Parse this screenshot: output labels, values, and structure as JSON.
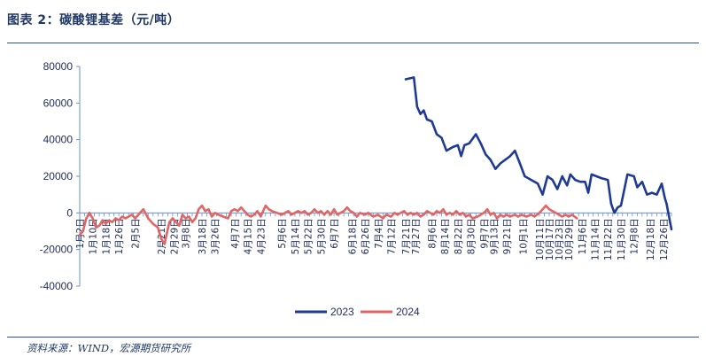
{
  "figure": {
    "title": "图表 2：碳酸锂基差（元/吨）",
    "source": "资料来源：WIND，宏源期货研究所"
  },
  "colors": {
    "series_2023": "#1f3a93",
    "series_2024": "#e06666",
    "axis": "#6a8fc7",
    "text": "#1f3864"
  },
  "chart_data": {
    "type": "line",
    "title": "",
    "xlabel": "",
    "ylabel": "",
    "ylim": [
      -40000,
      80000
    ],
    "yticks": [
      -40000,
      -20000,
      0,
      20000,
      40000,
      60000,
      80000
    ],
    "ytick_labels": [
      "-40000",
      "-20000",
      "0",
      "20000",
      "40000",
      "60000",
      "80000"
    ],
    "x_domain": [
      "1月2日",
      "12月31日"
    ],
    "x_tick_labels": [
      "1月2日",
      "1月10日",
      "1月18日",
      "1月26日",
      "2月5日",
      "2月21日",
      "2月29日",
      "3月8日",
      "3月18日",
      "3月26日",
      "4月7日",
      "4月15日",
      "4月23日",
      "5月6日",
      "5月14日",
      "5月22日",
      "5月30日",
      "6月7日",
      "6月18日",
      "6月26日",
      "7月4日",
      "7月12日",
      "7月21日",
      "7月27日",
      "8月6日",
      "8月14日",
      "8月22日",
      "8月30日",
      "9月7日",
      "9月13日",
      "9月21日",
      "10月1日",
      "10月11日",
      "10月17日",
      "10月23日",
      "10月29日",
      "11月6日",
      "11月14日",
      "11月22日",
      "11月30日",
      "12月8日",
      "12月18日",
      "12月26日"
    ],
    "grid": false,
    "legend": {
      "position": "bottom",
      "entries": [
        "2023",
        "2024"
      ]
    },
    "series": [
      {
        "name": "2023",
        "points": [
          [
            "7月21日",
            73000
          ],
          [
            "7月26日",
            74000
          ],
          [
            "7月28日",
            58000
          ],
          [
            "7月30日",
            54000
          ],
          [
            "8月1日",
            56000
          ],
          [
            "8月3日",
            51000
          ],
          [
            "8月6日",
            50000
          ],
          [
            "8月9日",
            43000
          ],
          [
            "8月12日",
            41000
          ],
          [
            "8月15日",
            34000
          ],
          [
            "8月19日",
            36000
          ],
          [
            "8月22日",
            37000
          ],
          [
            "8月24日",
            31000
          ],
          [
            "8月26日",
            37000
          ],
          [
            "8月29日",
            38000
          ],
          [
            "9月2日",
            43000
          ],
          [
            "9月5日",
            38000
          ],
          [
            "9月8日",
            32000
          ],
          [
            "9月11日",
            29000
          ],
          [
            "9月14日",
            24000
          ],
          [
            "9月17日",
            27000
          ],
          [
            "9月20日",
            29000
          ],
          [
            "9月23日",
            31000
          ],
          [
            "9月26日",
            34000
          ],
          [
            "9月29日",
            27000
          ],
          [
            "10月2日",
            20000
          ],
          [
            "10月6日",
            18000
          ],
          [
            "10月10日",
            16000
          ],
          [
            "10月13日",
            10000
          ],
          [
            "10月16日",
            20000
          ],
          [
            "10月19日",
            18000
          ],
          [
            "10月22日",
            13000
          ],
          [
            "10月25日",
            20000
          ],
          [
            "10月28日",
            15000
          ],
          [
            "10月30日",
            21000
          ],
          [
            "11月2日",
            18000
          ],
          [
            "11月5日",
            17000
          ],
          [
            "11月8日",
            17000
          ],
          [
            "11月10日",
            11000
          ],
          [
            "11月12日",
            21000
          ],
          [
            "11月15日",
            20000
          ],
          [
            "11月18日",
            19000
          ],
          [
            "11月22日",
            18000
          ],
          [
            "11月24日",
            5000
          ],
          [
            "11月26日",
            0
          ],
          [
            "11月28日",
            3000
          ],
          [
            "11月30日",
            4000
          ],
          [
            "12月4日",
            21000
          ],
          [
            "12月8日",
            20000
          ],
          [
            "12月10日",
            14000
          ],
          [
            "12月13日",
            17000
          ],
          [
            "12月16日",
            10000
          ],
          [
            "12月19日",
            11000
          ],
          [
            "12月22日",
            10000
          ],
          [
            "12月25日",
            16000
          ],
          [
            "12月27日",
            8000
          ],
          [
            "12月28日",
            5000
          ],
          [
            "12月31日",
            -9000
          ]
        ]
      },
      {
        "name": "2024",
        "points": [
          [
            "1月2日",
            -12000
          ],
          [
            "1月4日",
            -10000
          ],
          [
            "1月6日",
            -3000
          ],
          [
            "1月8日",
            0
          ],
          [
            "1月10日",
            -3000
          ],
          [
            "1月12日",
            -8000
          ],
          [
            "1月14日",
            -7000
          ],
          [
            "1月16日",
            -4000
          ],
          [
            "1月18日",
            -6000
          ],
          [
            "1月20日",
            -4000
          ],
          [
            "1月22日",
            -5000
          ],
          [
            "1月24日",
            -3000
          ],
          [
            "1月26日",
            -4000
          ],
          [
            "1月28日",
            -2000
          ],
          [
            "1月30日",
            -3000
          ],
          [
            "2月1日",
            -2000
          ],
          [
            "2月3日",
            -1000
          ],
          [
            "2月5日",
            -3000
          ],
          [
            "2月7日",
            -1000
          ],
          [
            "2月10日",
            2000
          ],
          [
            "2月13日",
            -3000
          ],
          [
            "2月16日",
            -6000
          ],
          [
            "2月19日",
            -8000
          ],
          [
            "2月21日",
            -14000
          ],
          [
            "2月23日",
            -17000
          ],
          [
            "2月26日",
            -5000
          ],
          [
            "2月28日",
            -3000
          ],
          [
            "3月1日",
            -4000
          ],
          [
            "3月4日",
            -7000
          ],
          [
            "3月6日",
            -1000
          ],
          [
            "3月8日",
            -3000
          ],
          [
            "3月10日",
            -2000
          ],
          [
            "3月12日",
            -5000
          ],
          [
            "3月14日",
            -3000
          ],
          [
            "3月16日",
            2000
          ],
          [
            "3月18日",
            4000
          ],
          [
            "3月20日",
            1000
          ],
          [
            "3月22日",
            2000
          ],
          [
            "3月24日",
            -2000
          ],
          [
            "3月26日",
            0
          ],
          [
            "3月28日",
            -1000
          ],
          [
            "3月31日",
            -2000
          ],
          [
            "4月3日",
            -3000
          ],
          [
            "4月5日",
            1000
          ],
          [
            "4月7日",
            2000
          ],
          [
            "4月9日",
            1000
          ],
          [
            "4月11日",
            3000
          ],
          [
            "4月13日",
            1000
          ],
          [
            "4月15日",
            -1000
          ],
          [
            "4月17日",
            -2000
          ],
          [
            "4月19日",
            -1000
          ],
          [
            "4月21日",
            1000
          ],
          [
            "4月23日",
            -2000
          ],
          [
            "4月26日",
            4000
          ],
          [
            "4月28日",
            2000
          ],
          [
            "4月30日",
            1000
          ],
          [
            "5月3日",
            0
          ],
          [
            "5月6日",
            -1000
          ],
          [
            "5月8日",
            0
          ],
          [
            "5月10日",
            1000
          ],
          [
            "5月12日",
            -1000
          ],
          [
            "5月14日",
            0
          ],
          [
            "5月16日",
            1000
          ],
          [
            "5月18日",
            0
          ],
          [
            "5月20日",
            1000
          ],
          [
            "5月22日",
            -1000
          ],
          [
            "5月24日",
            0
          ],
          [
            "5月26日",
            2000
          ],
          [
            "5月28日",
            0
          ],
          [
            "5月30日",
            1000
          ],
          [
            "6月1日",
            -1000
          ],
          [
            "6月3日",
            1000
          ],
          [
            "6月5日",
            -1000
          ],
          [
            "6月7日",
            2000
          ],
          [
            "6月9日",
            -1000
          ],
          [
            "6月11日",
            0
          ],
          [
            "6月13日",
            1000
          ],
          [
            "6月15日",
            3000
          ],
          [
            "6月17日",
            1000
          ],
          [
            "6月19日",
            0
          ],
          [
            "6月21日",
            -2000
          ],
          [
            "6月23日",
            0
          ],
          [
            "6月26日",
            -1000
          ],
          [
            "6月28日",
            0
          ],
          [
            "7月1日",
            -2000
          ],
          [
            "7月4日",
            -1000
          ],
          [
            "7月7日",
            -3000
          ],
          [
            "7月9日",
            -1000
          ],
          [
            "7月12日",
            -2000
          ],
          [
            "7月14日",
            0
          ],
          [
            "7月16日",
            -1000
          ],
          [
            "7月18日",
            0
          ],
          [
            "7月20日",
            1000
          ],
          [
            "7月22日",
            -1000
          ],
          [
            "7月24日",
            0
          ],
          [
            "7月26日",
            -1000
          ],
          [
            "7月28日",
            0
          ],
          [
            "7月30日",
            -2000
          ],
          [
            "8月1日",
            -1000
          ],
          [
            "8月3日",
            1000
          ],
          [
            "8月5日",
            0
          ],
          [
            "8月7日",
            -1000
          ],
          [
            "8月9日",
            1000
          ],
          [
            "8月11日",
            0
          ],
          [
            "8月13日",
            2000
          ],
          [
            "8月15日",
            -1000
          ],
          [
            "8月17日",
            0
          ],
          [
            "8月19日",
            -1000
          ],
          [
            "8月21日",
            1000
          ],
          [
            "8月23日",
            -1000
          ],
          [
            "8月25日",
            0
          ],
          [
            "8月27日",
            -2000
          ],
          [
            "8月29日",
            -1000
          ],
          [
            "8月31日",
            -3000
          ],
          [
            "9月3日",
            -2000
          ],
          [
            "9月5日",
            -1000
          ],
          [
            "9月7日",
            0
          ],
          [
            "9月9日",
            2000
          ],
          [
            "9月11日",
            -1000
          ],
          [
            "9月13日",
            0
          ],
          [
            "9月15日",
            -3000
          ],
          [
            "9月17日",
            -1000
          ],
          [
            "9月19日",
            -2000
          ],
          [
            "9月21日",
            -1000
          ],
          [
            "9月23日",
            -2000
          ],
          [
            "9月26日",
            -1000
          ],
          [
            "9月28日",
            -2000
          ],
          [
            "9月30日",
            -1000
          ],
          [
            "10月3日",
            -2000
          ],
          [
            "10月6日",
            -1000
          ],
          [
            "10月8日",
            -2000
          ],
          [
            "10月11日",
            0
          ],
          [
            "10月13日",
            2000
          ],
          [
            "10月15日",
            4000
          ],
          [
            "10月17日",
            2000
          ],
          [
            "10月19日",
            1000
          ],
          [
            "10月21日",
            0
          ],
          [
            "10月23日",
            -1000
          ],
          [
            "10月25日",
            -2000
          ],
          [
            "10月27日",
            -1000
          ],
          [
            "10月29日",
            -2000
          ],
          [
            "10月31日",
            -1000
          ],
          [
            "11月3日",
            -3000
          ]
        ]
      }
    ]
  }
}
